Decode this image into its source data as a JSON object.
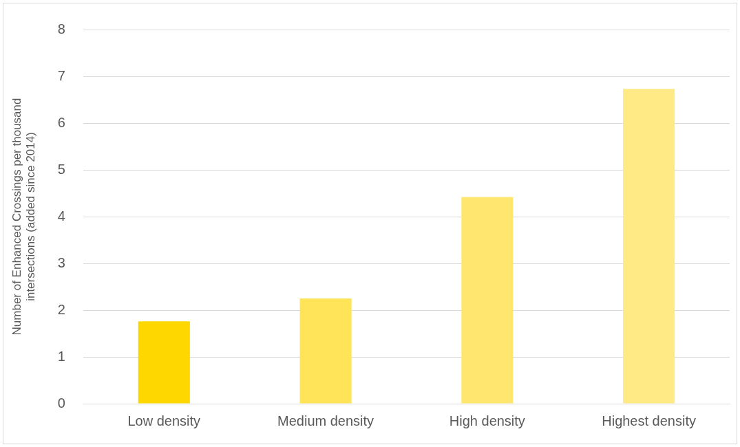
{
  "chart_data": {
    "type": "bar",
    "ylabel": "Number of Enhanced Crossings per thousand\nintersections (added since 2014)",
    "categories": [
      "Low density",
      "Medium density",
      "High density",
      "Highest density"
    ],
    "values": [
      1.76,
      2.25,
      4.42,
      6.73
    ],
    "colors": [
      "#ffd700",
      "#ffe45a",
      "#ffe66e",
      "#ffea85"
    ],
    "ylim": [
      0,
      8
    ],
    "yticks": [
      0,
      1,
      2,
      3,
      4,
      5,
      6,
      7,
      8
    ],
    "grid": "y",
    "legend": false
  }
}
